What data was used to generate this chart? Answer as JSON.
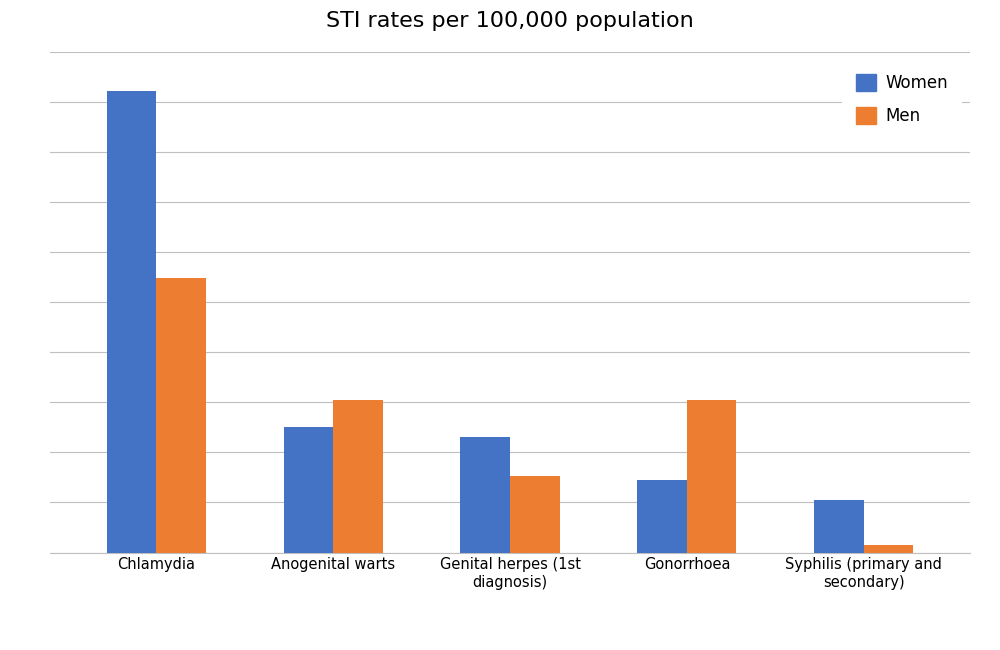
{
  "title": "STI rates per 100,000 population",
  "categories": [
    "Chlamydia",
    "Anogenital warts",
    "Genital herpes (1st\ndiagnosis)",
    "Gonorrhoea",
    "Syphilis (primary and\nsecondary)"
  ],
  "women_values": [
    480,
    130,
    120,
    75,
    55
  ],
  "men_values": [
    285,
    158,
    80,
    158,
    8
  ],
  "women_color": "#4472C4",
  "men_color": "#ED7D31",
  "background_color": "#FFFFFF",
  "grid_color": "#BFBFBF",
  "title_fontsize": 16,
  "legend_labels": [
    "Women",
    "Men"
  ],
  "bar_width": 0.28,
  "ylim": [
    0,
    520
  ],
  "n_gridlines": 10
}
